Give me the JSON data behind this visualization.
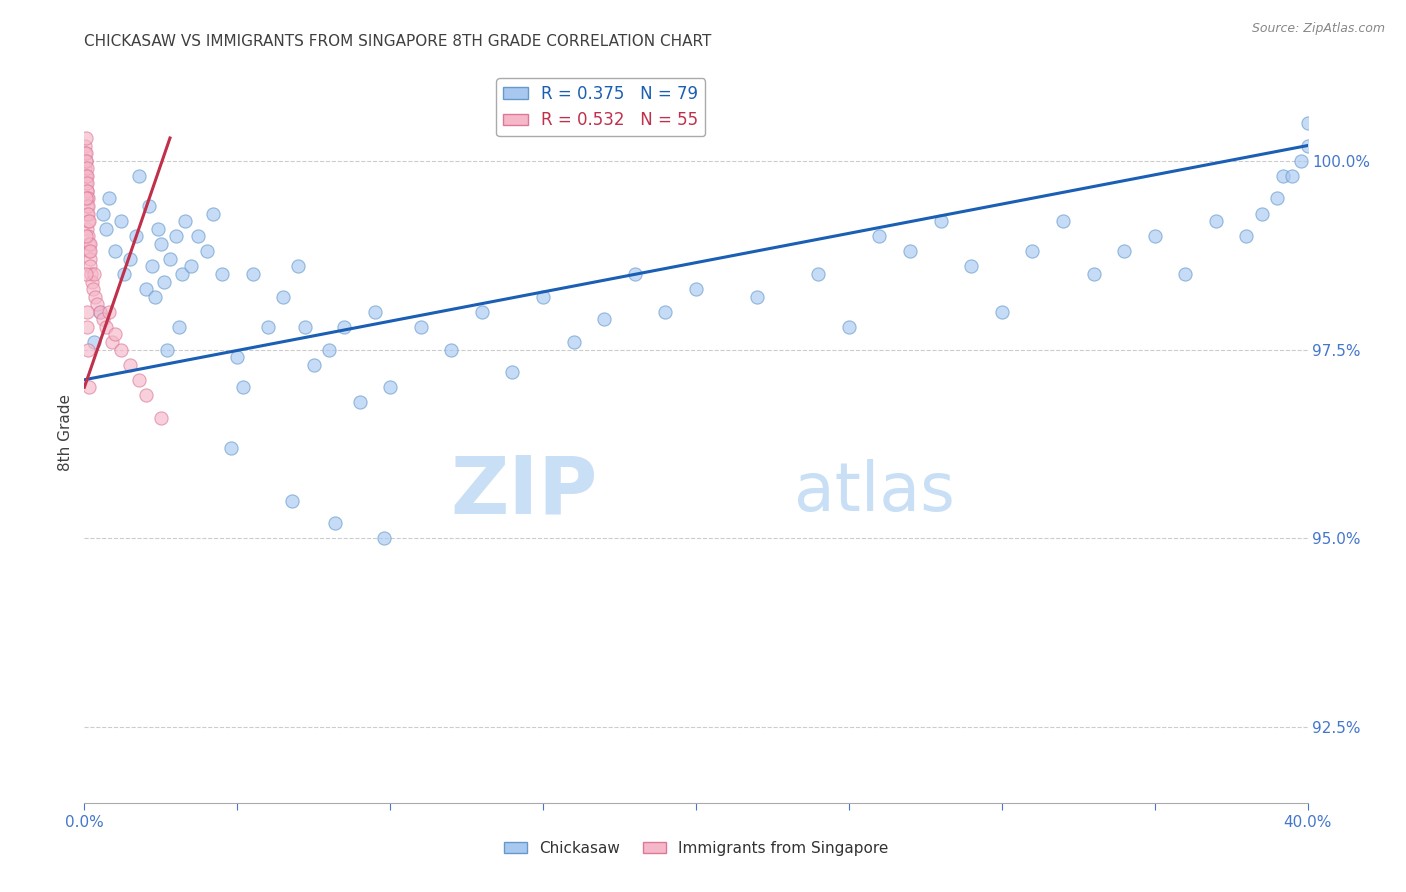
{
  "title": "CHICKASAW VS IMMIGRANTS FROM SINGAPORE 8TH GRADE CORRELATION CHART",
  "source": "Source: ZipAtlas.com",
  "ylabel": "8th Grade",
  "ylabel_right_ticks": [
    92.5,
    95.0,
    97.5,
    100.0
  ],
  "ylabel_right_labels": [
    "92.5%",
    "95.0%",
    "97.5%",
    "100.0%"
  ],
  "xlim": [
    0.0,
    40.0
  ],
  "ylim": [
    91.5,
    101.3
  ],
  "legend_blue": {
    "R": 0.375,
    "N": 79,
    "label": "Chickasaw"
  },
  "legend_pink": {
    "R": 0.532,
    "N": 55,
    "label": "Immigrants from Singapore"
  },
  "blue_color": "#a8c8f0",
  "pink_color": "#f5b8c8",
  "blue_edge": "#6699cc",
  "pink_edge": "#dd7799",
  "trend_blue_color": "#1a5fb4",
  "trend_pink_color": "#c0304a",
  "watermark_zip": "ZIP",
  "watermark_atlas": "atlas",
  "watermark_color_zip": "#c8dff5",
  "watermark_color_atlas": "#c8dff5",
  "blue_scatter_x": [
    0.3,
    0.5,
    0.6,
    0.7,
    0.8,
    1.0,
    1.2,
    1.3,
    1.5,
    1.7,
    1.8,
    2.0,
    2.1,
    2.2,
    2.4,
    2.5,
    2.6,
    2.8,
    3.0,
    3.2,
    3.3,
    3.5,
    3.7,
    4.0,
    4.2,
    4.5,
    5.0,
    5.5,
    6.0,
    6.5,
    7.0,
    7.5,
    8.0,
    8.5,
    9.0,
    9.5,
    10.0,
    11.0,
    12.0,
    13.0,
    14.0,
    15.0,
    16.0,
    17.0,
    18.0,
    19.0,
    20.0,
    22.0,
    24.0,
    25.0,
    26.0,
    27.0,
    28.0,
    29.0,
    30.0,
    31.0,
    32.0,
    33.0,
    34.0,
    35.0,
    36.0,
    37.0,
    38.0,
    38.5,
    39.0,
    39.2,
    39.5,
    39.8,
    40.0,
    40.0,
    2.3,
    2.7,
    3.1,
    4.8,
    5.2,
    6.8,
    7.2,
    8.2,
    9.8
  ],
  "blue_scatter_y": [
    97.6,
    98.0,
    99.3,
    99.1,
    99.5,
    98.8,
    99.2,
    98.5,
    98.7,
    99.0,
    99.8,
    98.3,
    99.4,
    98.6,
    99.1,
    98.9,
    98.4,
    98.7,
    99.0,
    98.5,
    99.2,
    98.6,
    99.0,
    98.8,
    99.3,
    98.5,
    97.4,
    98.5,
    97.8,
    98.2,
    98.6,
    97.3,
    97.5,
    97.8,
    96.8,
    98.0,
    97.0,
    97.8,
    97.5,
    98.0,
    97.2,
    98.2,
    97.6,
    97.9,
    98.5,
    98.0,
    98.3,
    98.2,
    98.5,
    97.8,
    99.0,
    98.8,
    99.2,
    98.6,
    98.0,
    98.8,
    99.2,
    98.5,
    98.8,
    99.0,
    98.5,
    99.2,
    99.0,
    99.3,
    99.5,
    99.8,
    99.8,
    100.0,
    100.2,
    100.5,
    98.2,
    97.5,
    97.8,
    96.2,
    97.0,
    95.5,
    97.8,
    95.2,
    95.0
  ],
  "pink_scatter_x": [
    0.02,
    0.03,
    0.03,
    0.04,
    0.04,
    0.05,
    0.05,
    0.05,
    0.06,
    0.06,
    0.07,
    0.07,
    0.08,
    0.08,
    0.09,
    0.09,
    0.1,
    0.1,
    0.1,
    0.11,
    0.12,
    0.12,
    0.13,
    0.13,
    0.15,
    0.15,
    0.16,
    0.17,
    0.18,
    0.2,
    0.2,
    0.22,
    0.25,
    0.28,
    0.3,
    0.35,
    0.4,
    0.5,
    0.6,
    0.7,
    0.8,
    0.9,
    1.0,
    1.2,
    1.5,
    1.8,
    2.0,
    2.5,
    0.04,
    0.05,
    0.06,
    0.08,
    0.1,
    0.12,
    0.15
  ],
  "pink_scatter_y": [
    100.2,
    100.1,
    99.9,
    100.0,
    99.8,
    100.3,
    100.1,
    99.7,
    100.0,
    99.8,
    99.9,
    99.6,
    99.8,
    99.5,
    99.7,
    99.4,
    99.6,
    99.3,
    99.1,
    99.5,
    99.4,
    99.2,
    99.3,
    99.0,
    99.2,
    98.9,
    98.8,
    98.7,
    98.9,
    98.8,
    98.6,
    98.5,
    98.4,
    98.3,
    98.5,
    98.2,
    98.1,
    98.0,
    97.9,
    97.8,
    98.0,
    97.6,
    97.7,
    97.5,
    97.3,
    97.1,
    96.9,
    96.6,
    99.5,
    99.0,
    98.5,
    98.0,
    97.8,
    97.5,
    97.0
  ],
  "blue_trend_x": [
    0.0,
    40.0
  ],
  "blue_trend_y": [
    97.1,
    100.2
  ],
  "pink_trend_x": [
    0.0,
    2.8
  ],
  "pink_trend_y": [
    97.0,
    100.3
  ],
  "background_color": "#ffffff",
  "grid_color": "#cccccc",
  "title_color": "#404040",
  "axis_label_color": "#4477cc",
  "source_color": "#888888",
  "xticks": [
    0,
    5,
    10,
    15,
    20,
    25,
    30,
    35,
    40
  ]
}
